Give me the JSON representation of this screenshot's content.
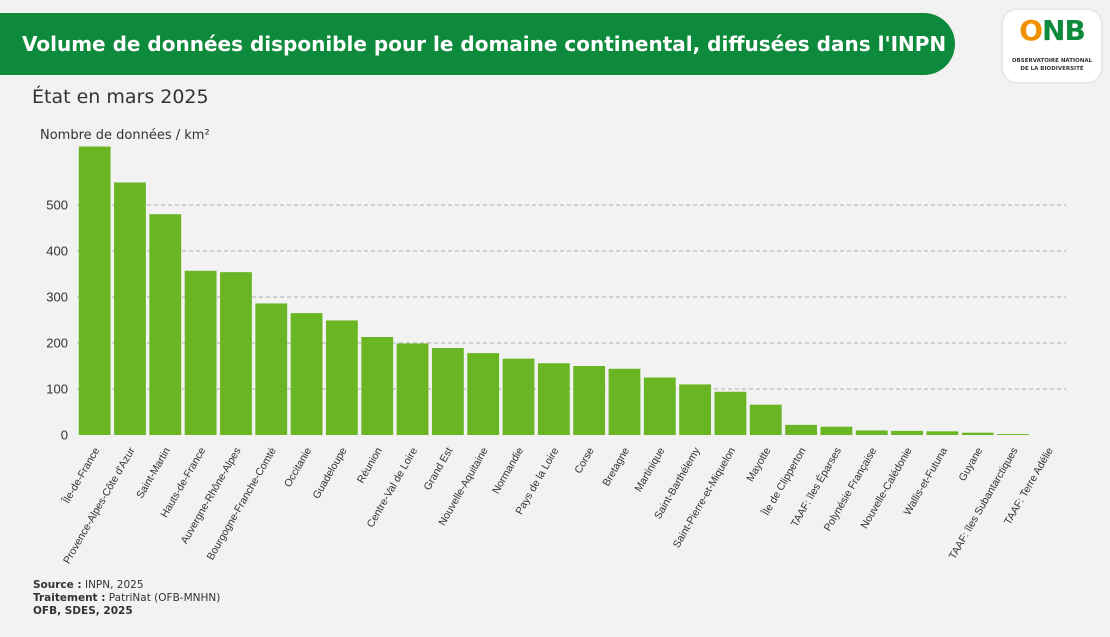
{
  "header": {
    "title": "Volume de données disponible pour le domaine continental, diffusées dans l'INPN",
    "subtitle": "État en mars 2025"
  },
  "logo": {
    "mark_o": "O",
    "mark_nb": "NB",
    "line1": "OBSERVATOIRE NATIONAL",
    "line2": "DE LA BIODIVERSITÉ"
  },
  "colors": {
    "banner": "#0e8a3c",
    "bar": "#6ab523",
    "logo_orange": "#f29100"
  },
  "chart_data": {
    "type": "bar",
    "title": "",
    "xlabel": "",
    "ylabel": "Nombre de données / km²",
    "ylim": [
      0,
      630
    ],
    "yticks": [
      0,
      100,
      200,
      300,
      400,
      500
    ],
    "grid": true,
    "categories": [
      "Île-de-France",
      "Provence-Alpes-Côte d'Azur",
      "Saint-Martin",
      "Hauts-de-France",
      "Auvergne-Rhône-Alpes",
      "Bourgogne-Franche-Comté",
      "Occitanie",
      "Guadeloupe",
      "Réunion",
      "Centre-Val de Loire",
      "Grand Est",
      "Nouvelle-Aquitaine",
      "Normandie",
      "Pays de la Loire",
      "Corse",
      "Bretagne",
      "Martinique",
      "Saint-Barthélemy",
      "Saint-Pierre-et-Miquelon",
      "Mayotte",
      "Île de Clipperton",
      "TAAF: îles Éparses",
      "Polynésie Française",
      "Nouvelle-Calédonie",
      "Wallis-et-Futuna",
      "Guyane",
      "TAAF: îles Subantarctiques",
      "TAAF: Terre Adélie"
    ],
    "values": [
      627,
      549,
      480,
      357,
      354,
      286,
      265,
      249,
      213,
      199,
      189,
      178,
      166,
      156,
      150,
      144,
      125,
      110,
      94,
      66,
      22,
      18,
      10,
      9,
      8,
      5,
      2,
      0
    ]
  },
  "footer": {
    "source_label": "Source :",
    "source_value": "INPN, 2025",
    "traitement_label": "Traitement :",
    "traitement_value": "PatriNat (OFB-MNHN)",
    "credit": "OFB, SDES, 2025"
  }
}
